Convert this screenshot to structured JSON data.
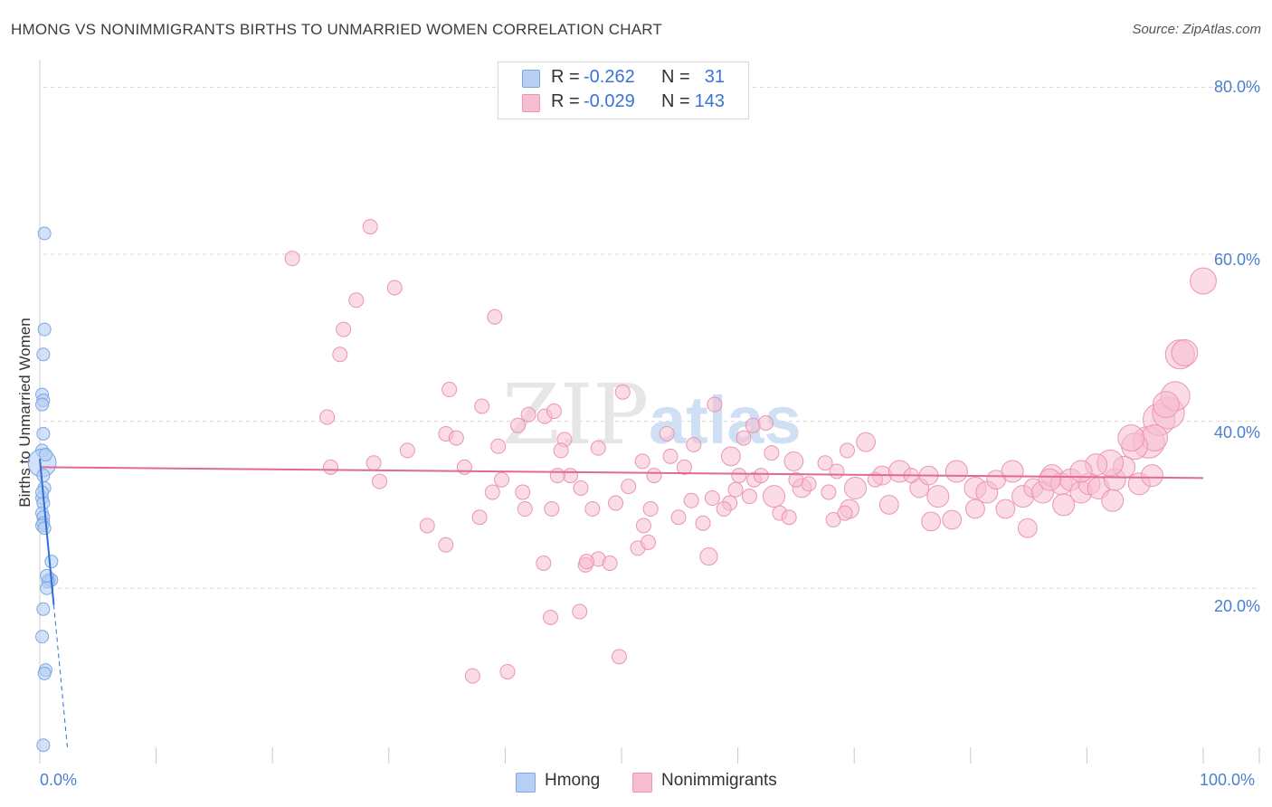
{
  "title": "HMONG VS NONIMMIGRANTS BIRTHS TO UNMARRIED WOMEN CORRELATION CHART",
  "source": "Source: ZipAtlas.com",
  "watermark": {
    "zip": "ZIP",
    "atlas": "atlas"
  },
  "legend_top": {
    "rows": [
      {
        "r_label": "R =",
        "r_value": "-0.262",
        "n_label": "N =",
        "n_value": "31"
      },
      {
        "r_label": "R =",
        "r_value": "-0.029",
        "n_label": "N =",
        "n_value": "143"
      }
    ]
  },
  "legend_bottom": {
    "hmong": "Hmong",
    "nonimmigrants": "Nonimmigrants"
  },
  "colors": {
    "hmong_fill": "#b6cff3",
    "hmong_stroke": "#7aa6e6",
    "hmong_line": "#2d6fd6",
    "non_fill": "#f7bdd0",
    "non_stroke": "#ea95b2",
    "non_line": "#e06a94",
    "axis_label": "#4a7fd0",
    "grid": "#d9d9d9"
  },
  "chart_data": {
    "type": "scatter",
    "title": "HMONG VS NONIMMIGRANTS BIRTHS TO UNMARRIED WOMEN CORRELATION CHART",
    "xlabel": "",
    "ylabel": "Births to Unmarried Women",
    "xlim": [
      0,
      100
    ],
    "ylim": [
      -1,
      82
    ],
    "x_tick_labels": [
      "0.0%",
      "100.0%"
    ],
    "y_ticks": [
      20,
      40,
      60,
      80
    ],
    "y_tick_labels": [
      "20.0%",
      "40.0%",
      "60.0%",
      "80.0%"
    ],
    "series": [
      {
        "name": "Hmong",
        "r": -0.262,
        "n": 31,
        "trend": {
          "x": [
            0,
            1.2
          ],
          "y": [
            35.5,
            18.0
          ]
        },
        "trend_extended": {
          "x": [
            1.2,
            2.4
          ],
          "y": [
            18.0,
            0.5
          ]
        },
        "points": [
          [
            0.4,
            62.5,
            1
          ],
          [
            0.4,
            51.0,
            1
          ],
          [
            0.3,
            48.0,
            1
          ],
          [
            0.2,
            43.2,
            1
          ],
          [
            0.3,
            42.5,
            1
          ],
          [
            0.2,
            42.0,
            1
          ],
          [
            0.3,
            38.5,
            1
          ],
          [
            0.2,
            36.5,
            1
          ],
          [
            0.2,
            35.0,
            2.2
          ],
          [
            0.3,
            33.5,
            1
          ],
          [
            0.4,
            32.0,
            1
          ],
          [
            0.2,
            30.8,
            1
          ],
          [
            0.3,
            30.2,
            1
          ],
          [
            0.2,
            29.0,
            1
          ],
          [
            0.3,
            28.5,
            1
          ],
          [
            0.3,
            27.8,
            1
          ],
          [
            0.2,
            27.5,
            1
          ],
          [
            0.4,
            27.2,
            1
          ],
          [
            1.0,
            23.2,
            1
          ],
          [
            0.8,
            21.0,
            1
          ],
          [
            1.0,
            21.0,
            1
          ],
          [
            0.7,
            20.8,
            1
          ],
          [
            0.6,
            20.0,
            1
          ],
          [
            0.3,
            17.5,
            1
          ],
          [
            0.2,
            14.2,
            1
          ],
          [
            0.5,
            10.2,
            1
          ],
          [
            0.4,
            9.8,
            1
          ],
          [
            0.3,
            1.2,
            1
          ],
          [
            0.6,
            21.5,
            1
          ],
          [
            0.5,
            36.0,
            1
          ],
          [
            0.2,
            31.5,
            1
          ]
        ]
      },
      {
        "name": "Nonimmigrants",
        "r": -0.029,
        "n": 143,
        "trend": {
          "x": [
            0,
            100
          ],
          "y": [
            34.5,
            33.2
          ]
        },
        "points": [
          [
            21.7,
            59.5,
            1
          ],
          [
            28.4,
            63.3,
            1
          ],
          [
            30.5,
            56.0,
            1
          ],
          [
            27.2,
            54.5,
            1
          ],
          [
            26.1,
            51.0,
            1
          ],
          [
            39.1,
            52.5,
            1
          ],
          [
            25.8,
            48.0,
            1
          ],
          [
            24.7,
            40.5,
            1
          ],
          [
            35.2,
            43.8,
            1
          ],
          [
            38.0,
            41.8,
            1
          ],
          [
            43.4,
            40.6,
            1
          ],
          [
            42.0,
            40.8,
            1
          ],
          [
            44.2,
            41.2,
            1
          ],
          [
            50.1,
            43.5,
            1
          ],
          [
            58.0,
            42.0,
            1
          ],
          [
            31.6,
            36.5,
            1
          ],
          [
            34.9,
            38.5,
            1
          ],
          [
            35.8,
            38.0,
            1
          ],
          [
            39.4,
            37.0,
            1
          ],
          [
            45.1,
            37.8,
            1
          ],
          [
            28.7,
            35.0,
            1
          ],
          [
            25.0,
            34.5,
            1
          ],
          [
            36.5,
            34.5,
            1
          ],
          [
            29.2,
            32.8,
            1
          ],
          [
            39.7,
            33.0,
            1
          ],
          [
            41.5,
            31.5,
            1
          ],
          [
            45.6,
            33.5,
            1
          ],
          [
            51.8,
            35.2,
            1
          ],
          [
            54.2,
            35.8,
            1
          ],
          [
            56.2,
            37.2,
            1
          ],
          [
            55.4,
            34.5,
            1
          ],
          [
            53.9,
            38.5,
            1
          ],
          [
            60.5,
            38.0,
            1
          ],
          [
            61.3,
            39.5,
            1
          ],
          [
            62.4,
            39.8,
            1
          ],
          [
            59.4,
            35.8,
            1.3
          ],
          [
            62.9,
            36.2,
            1
          ],
          [
            64.8,
            35.2,
            1.3
          ],
          [
            67.5,
            35.0,
            1
          ],
          [
            69.4,
            36.5,
            1
          ],
          [
            71.0,
            37.5,
            1.3
          ],
          [
            61.4,
            33.0,
            1
          ],
          [
            63.1,
            31.0,
            1.5
          ],
          [
            65.5,
            32.0,
            1.3
          ],
          [
            67.8,
            31.5,
            1
          ],
          [
            68.5,
            34.0,
            1
          ],
          [
            70.1,
            32.0,
            1.5
          ],
          [
            72.4,
            33.5,
            1.3
          ],
          [
            73.9,
            34.0,
            1.5
          ],
          [
            75.6,
            32.0,
            1.3
          ],
          [
            76.4,
            33.5,
            1.3
          ],
          [
            77.2,
            31.0,
            1.5
          ],
          [
            78.8,
            34.0,
            1.5
          ],
          [
            80.4,
            32.0,
            1.5
          ],
          [
            81.4,
            31.5,
            1.5
          ],
          [
            82.2,
            33.0,
            1.3
          ],
          [
            83.6,
            34.0,
            1.5
          ],
          [
            84.5,
            31.0,
            1.5
          ],
          [
            85.4,
            32.0,
            1.3
          ],
          [
            86.2,
            31.5,
            1.5
          ],
          [
            87.0,
            33.5,
            1.5
          ],
          [
            87.8,
            32.5,
            1.5
          ],
          [
            88.6,
            33.0,
            1.5
          ],
          [
            89.5,
            31.5,
            1.5
          ],
          [
            90.2,
            32.5,
            1.5
          ],
          [
            91.0,
            32.0,
            1.5
          ],
          [
            92.4,
            33.0,
            1.5
          ],
          [
            93.2,
            34.5,
            1.5
          ],
          [
            94.5,
            32.5,
            1.5
          ],
          [
            95.6,
            33.5,
            1.5
          ],
          [
            88.0,
            30.0,
            1.5
          ],
          [
            92.2,
            30.5,
            1.5
          ],
          [
            73.0,
            30.0,
            1.3
          ],
          [
            69.6,
            29.5,
            1.3
          ],
          [
            76.6,
            28.0,
            1.3
          ],
          [
            78.4,
            28.2,
            1.3
          ],
          [
            80.4,
            29.5,
            1.3
          ],
          [
            83.0,
            29.5,
            1.3
          ],
          [
            84.9,
            27.2,
            1.3
          ],
          [
            68.2,
            28.2,
            1
          ],
          [
            69.2,
            29.0,
            1
          ],
          [
            63.6,
            29.0,
            1
          ],
          [
            64.4,
            28.5,
            1
          ],
          [
            95.3,
            37.5,
            2.2
          ],
          [
            96.2,
            40.2,
            2.2
          ],
          [
            97.0,
            41.0,
            2.2
          ],
          [
            97.6,
            43.0,
            2.0
          ],
          [
            95.8,
            38.0,
            1.8
          ],
          [
            96.8,
            42.0,
            1.8
          ],
          [
            98.0,
            48.0,
            2.0
          ],
          [
            98.4,
            48.2,
            1.8
          ],
          [
            100.0,
            56.8,
            1.8
          ],
          [
            94.1,
            37.0,
            1.8
          ],
          [
            93.8,
            38.0,
            1.8
          ],
          [
            92.0,
            35.0,
            1.8
          ],
          [
            90.8,
            34.8,
            1.5
          ],
          [
            89.5,
            34.0,
            1.5
          ],
          [
            86.8,
            33.0,
            1.5
          ],
          [
            61.0,
            31.0,
            1
          ],
          [
            49.5,
            30.2,
            1
          ],
          [
            47.5,
            29.5,
            1
          ],
          [
            44.0,
            29.5,
            1
          ],
          [
            41.7,
            29.5,
            1
          ],
          [
            37.8,
            28.5,
            1
          ],
          [
            33.3,
            27.5,
            1
          ],
          [
            46.5,
            32.0,
            1
          ],
          [
            50.6,
            32.2,
            1
          ],
          [
            52.5,
            29.5,
            1
          ],
          [
            51.9,
            27.5,
            1
          ],
          [
            54.9,
            28.5,
            1
          ],
          [
            57.0,
            27.8,
            1
          ],
          [
            56.0,
            30.5,
            1
          ],
          [
            57.8,
            30.8,
            1
          ],
          [
            59.3,
            30.2,
            1
          ],
          [
            59.8,
            31.8,
            1
          ],
          [
            46.9,
            22.8,
            1
          ],
          [
            48.0,
            23.5,
            1
          ],
          [
            47.0,
            23.2,
            1
          ],
          [
            49.0,
            23.0,
            1
          ],
          [
            51.4,
            24.8,
            1
          ],
          [
            52.3,
            25.5,
            1
          ],
          [
            57.5,
            23.8,
            1.2
          ],
          [
            43.3,
            23.0,
            1
          ],
          [
            34.9,
            25.2,
            1
          ],
          [
            43.9,
            16.5,
            1
          ],
          [
            46.4,
            17.2,
            1
          ],
          [
            49.8,
            11.8,
            1
          ],
          [
            37.2,
            9.5,
            1
          ],
          [
            40.2,
            10.0,
            1
          ],
          [
            38.9,
            31.5,
            1
          ],
          [
            44.5,
            33.5,
            1
          ],
          [
            44.8,
            36.5,
            1
          ],
          [
            41.1,
            39.5,
            1
          ],
          [
            48.0,
            36.8,
            1
          ],
          [
            52.8,
            33.5,
            1
          ],
          [
            74.9,
            33.5,
            1
          ],
          [
            66.1,
            32.5,
            1
          ],
          [
            60.1,
            33.5,
            1
          ],
          [
            58.8,
            29.5,
            1
          ],
          [
            62.0,
            33.5,
            1
          ],
          [
            65.0,
            33.0,
            1
          ],
          [
            71.8,
            33.0,
            1
          ]
        ]
      }
    ]
  }
}
